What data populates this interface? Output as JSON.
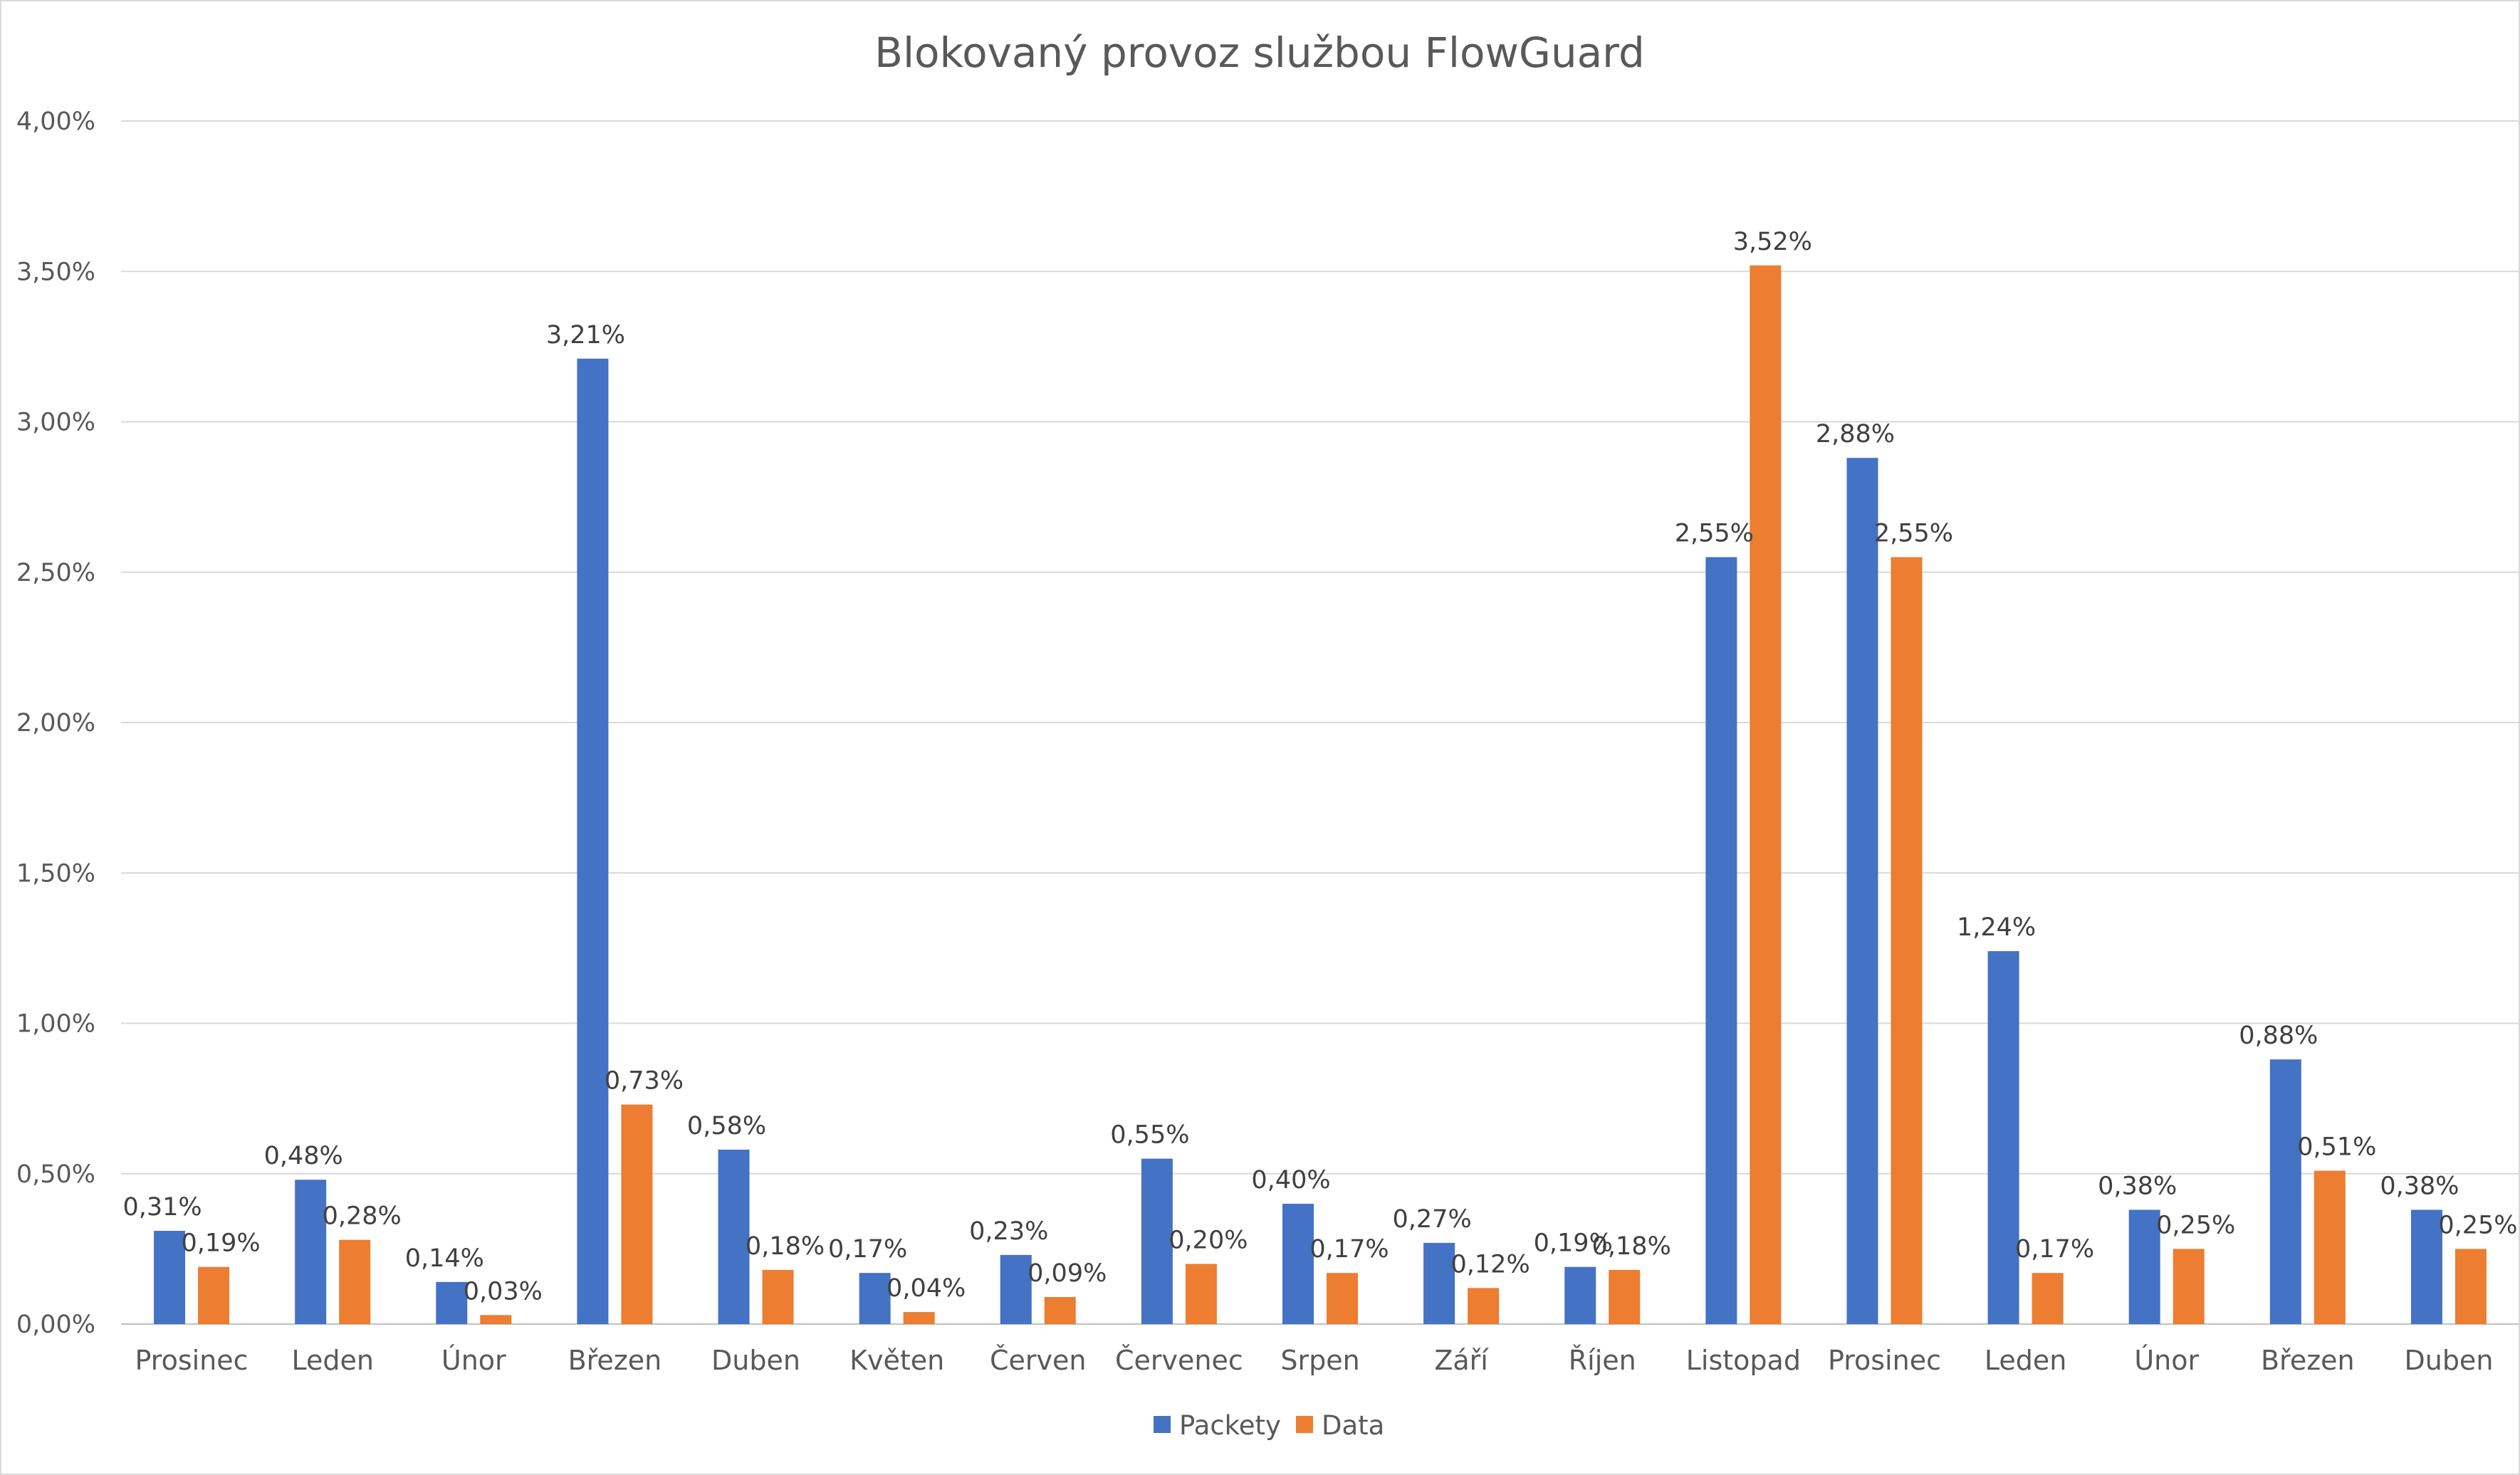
{
  "chart_data": {
    "type": "bar",
    "title": "Blokovaný provoz službou FlowGuard",
    "xlabel": "",
    "ylabel": "",
    "ylim": [
      0,
      4
    ],
    "y_ticks": [
      "0,00%",
      "0,50%",
      "1,00%",
      "1,50%",
      "2,00%",
      "2,50%",
      "3,00%",
      "3,50%",
      "4,00%"
    ],
    "grid": true,
    "legend_position": "bottom",
    "categories": [
      "Prosinec",
      "Leden",
      "Únor",
      "Březen",
      "Duben",
      "Květen",
      "Červen",
      "Červenec",
      "Srpen",
      "Září",
      "Říjen",
      "Listopad",
      "Prosinec",
      "Leden",
      "Únor",
      "Březen",
      "Duben"
    ],
    "series": [
      {
        "name": "Packety",
        "color": "#4472C4",
        "values": [
          0.31,
          0.48,
          0.14,
          3.21,
          0.58,
          0.17,
          0.23,
          0.55,
          0.4,
          0.27,
          0.19,
          2.55,
          2.88,
          1.24,
          0.38,
          0.88,
          0.38
        ],
        "labels": [
          "0,31%",
          "0,48%",
          "0,14%",
          "3,21%",
          "0,58%",
          "0,17%",
          "0,23%",
          "0,55%",
          "0,40%",
          "0,27%",
          "0,19%",
          "2,55%",
          "2,88%",
          "1,24%",
          "0,38%",
          "0,88%",
          "0,38%"
        ]
      },
      {
        "name": "Data",
        "color": "#ED7D31",
        "values": [
          0.19,
          0.28,
          0.03,
          0.73,
          0.18,
          0.04,
          0.09,
          0.2,
          0.17,
          0.12,
          0.18,
          3.52,
          2.55,
          0.17,
          0.25,
          0.51,
          0.25
        ],
        "labels": [
          "0,19%",
          "0,28%",
          "0,03%",
          "0,73%",
          "0,18%",
          "0,04%",
          "0,09%",
          "0,20%",
          "0,17%",
          "0,12%",
          "0,18%",
          "3,52%",
          "2,55%",
          "0,17%",
          "0,25%",
          "0,51%",
          "0,25%"
        ]
      }
    ]
  }
}
